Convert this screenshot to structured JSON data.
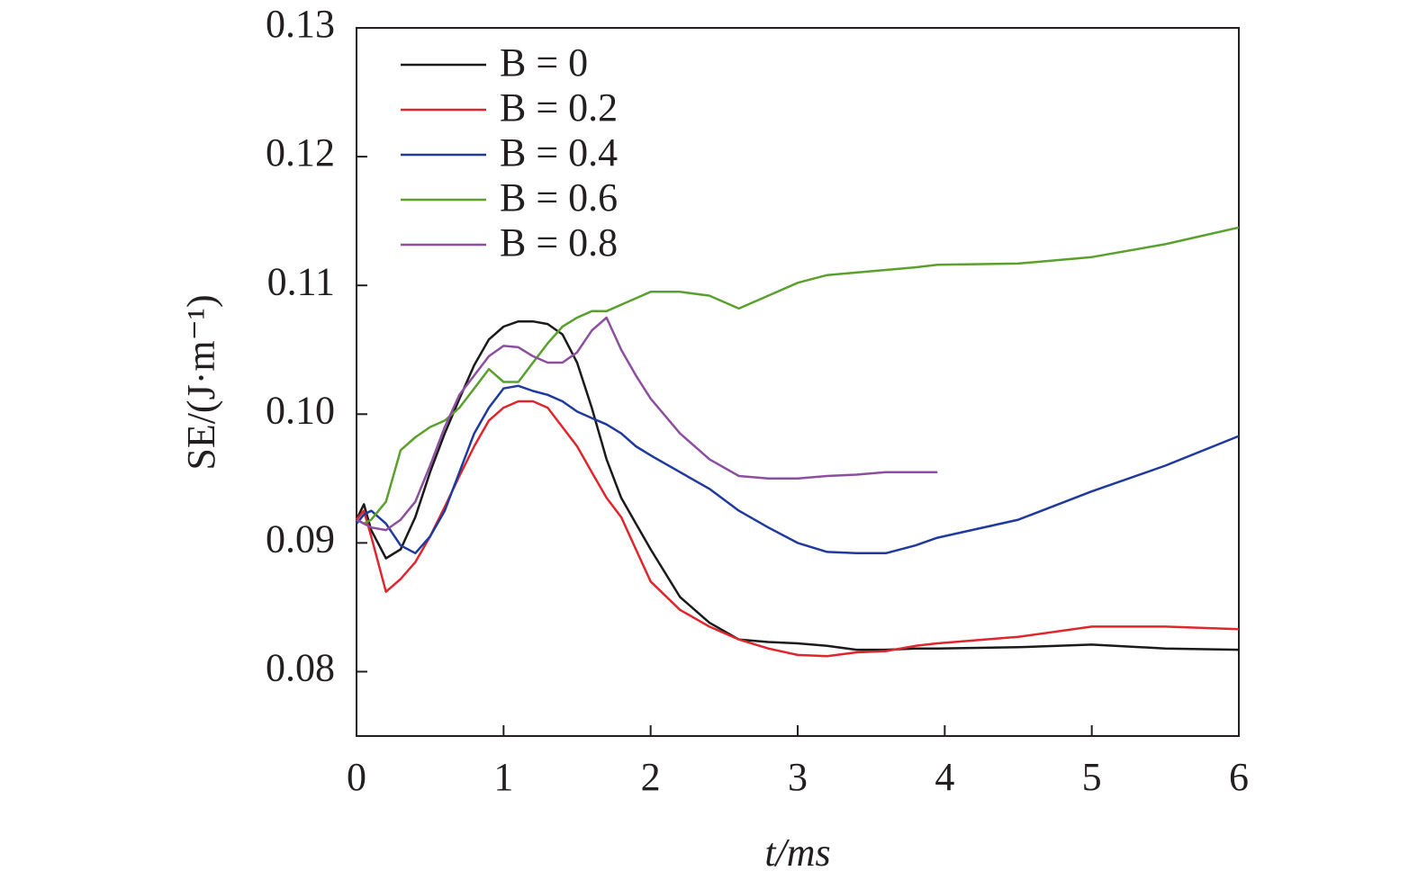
{
  "chart_data": {
    "type": "line",
    "x_label": "t/ms",
    "y_label": "SE/(J·m⁻¹)",
    "x": [
      0,
      0.05,
      0.1,
      0.2,
      0.3,
      0.4,
      0.5,
      0.6,
      0.7,
      0.8,
      0.9,
      1.0,
      1.1,
      1.2,
      1.3,
      1.4,
      1.5,
      1.6,
      1.7,
      1.8,
      1.9,
      2.0,
      2.2,
      2.4,
      2.6,
      2.8,
      3.0,
      3.2,
      3.4,
      3.6,
      3.8,
      3.95,
      4.5,
      5.0,
      5.5,
      6.0
    ],
    "series": [
      {
        "name": "B = 0",
        "color": "#1a1a1a",
        "values": [
          0.0918,
          0.093,
          0.091,
          0.0888,
          0.0895,
          0.092,
          0.0955,
          0.0985,
          0.1012,
          0.1038,
          0.1058,
          0.1068,
          0.1072,
          0.1072,
          0.107,
          0.1062,
          0.104,
          0.1005,
          0.0965,
          0.0935,
          0.0915,
          0.0895,
          0.0858,
          0.0838,
          0.0825,
          0.0823,
          0.0822,
          0.082,
          0.0817,
          0.0817,
          0.0818,
          0.0818,
          0.0819,
          0.0821,
          0.0818,
          0.0817
        ]
      },
      {
        "name": "B = 0.2",
        "color": "#e0262c",
        "values": [
          0.0918,
          0.0925,
          0.0905,
          0.0862,
          0.0872,
          0.0885,
          0.0905,
          0.0928,
          0.0952,
          0.0975,
          0.0995,
          0.1005,
          0.101,
          0.101,
          0.1005,
          0.099,
          0.0975,
          0.0955,
          0.0935,
          0.092,
          0.0895,
          0.087,
          0.0848,
          0.0835,
          0.0825,
          0.0818,
          0.0813,
          0.0812,
          0.0815,
          0.0816,
          0.082,
          0.0822,
          0.0827,
          0.0835,
          0.0835,
          0.0833
        ]
      },
      {
        "name": "B = 0.4",
        "color": "#1f3a9e",
        "values": [
          0.0915,
          0.0922,
          0.0925,
          0.0915,
          0.0898,
          0.0892,
          0.0905,
          0.0925,
          0.0955,
          0.0985,
          0.1005,
          0.102,
          0.1022,
          0.1018,
          0.1015,
          0.101,
          0.1002,
          0.0997,
          0.0992,
          0.0985,
          0.0975,
          0.0968,
          0.0955,
          0.0942,
          0.0925,
          0.0912,
          0.09,
          0.0893,
          0.0892,
          0.0892,
          0.0898,
          0.0904,
          0.0918,
          0.094,
          0.096,
          0.0983
        ]
      },
      {
        "name": "B = 0.6",
        "color": "#5aa02c",
        "values": [
          0.0918,
          0.0915,
          0.0918,
          0.0932,
          0.0972,
          0.0982,
          0.099,
          0.0995,
          0.1005,
          0.102,
          0.1035,
          0.1025,
          0.1025,
          0.104,
          0.1055,
          0.1068,
          0.1075,
          0.108,
          0.108,
          0.1085,
          0.109,
          0.1095,
          0.1095,
          0.1092,
          0.1082,
          0.1092,
          0.1102,
          0.1108,
          0.111,
          0.1112,
          0.1114,
          0.1116,
          0.1117,
          0.1122,
          0.1132,
          0.1145
        ]
      },
      {
        "name": "B = 0.8",
        "color": "#8e4ea0",
        "values": [
          0.0918,
          0.0915,
          0.0912,
          0.091,
          0.0918,
          0.0932,
          0.096,
          0.099,
          0.1015,
          0.103,
          0.1045,
          0.1053,
          0.1052,
          0.1045,
          0.104,
          0.104,
          0.1048,
          0.1065,
          0.1075,
          0.105,
          0.103,
          0.1012,
          0.0985,
          0.0965,
          0.0952,
          0.095,
          0.095,
          0.0952,
          0.0953,
          0.0955,
          0.0955,
          0.0955,
          null,
          null,
          null,
          null
        ]
      }
    ],
    "xlim": [
      0,
      6
    ],
    "xticks": [
      0,
      1,
      2,
      3,
      4,
      5,
      6
    ],
    "ylim": [
      0.075,
      0.13
    ],
    "yticks": [
      0.08,
      0.09,
      {
        "value": 0.1,
        "label": "0.10"
      },
      0.11,
      0.12,
      0.13
    ],
    "grid": false,
    "legend": "upper left"
  }
}
